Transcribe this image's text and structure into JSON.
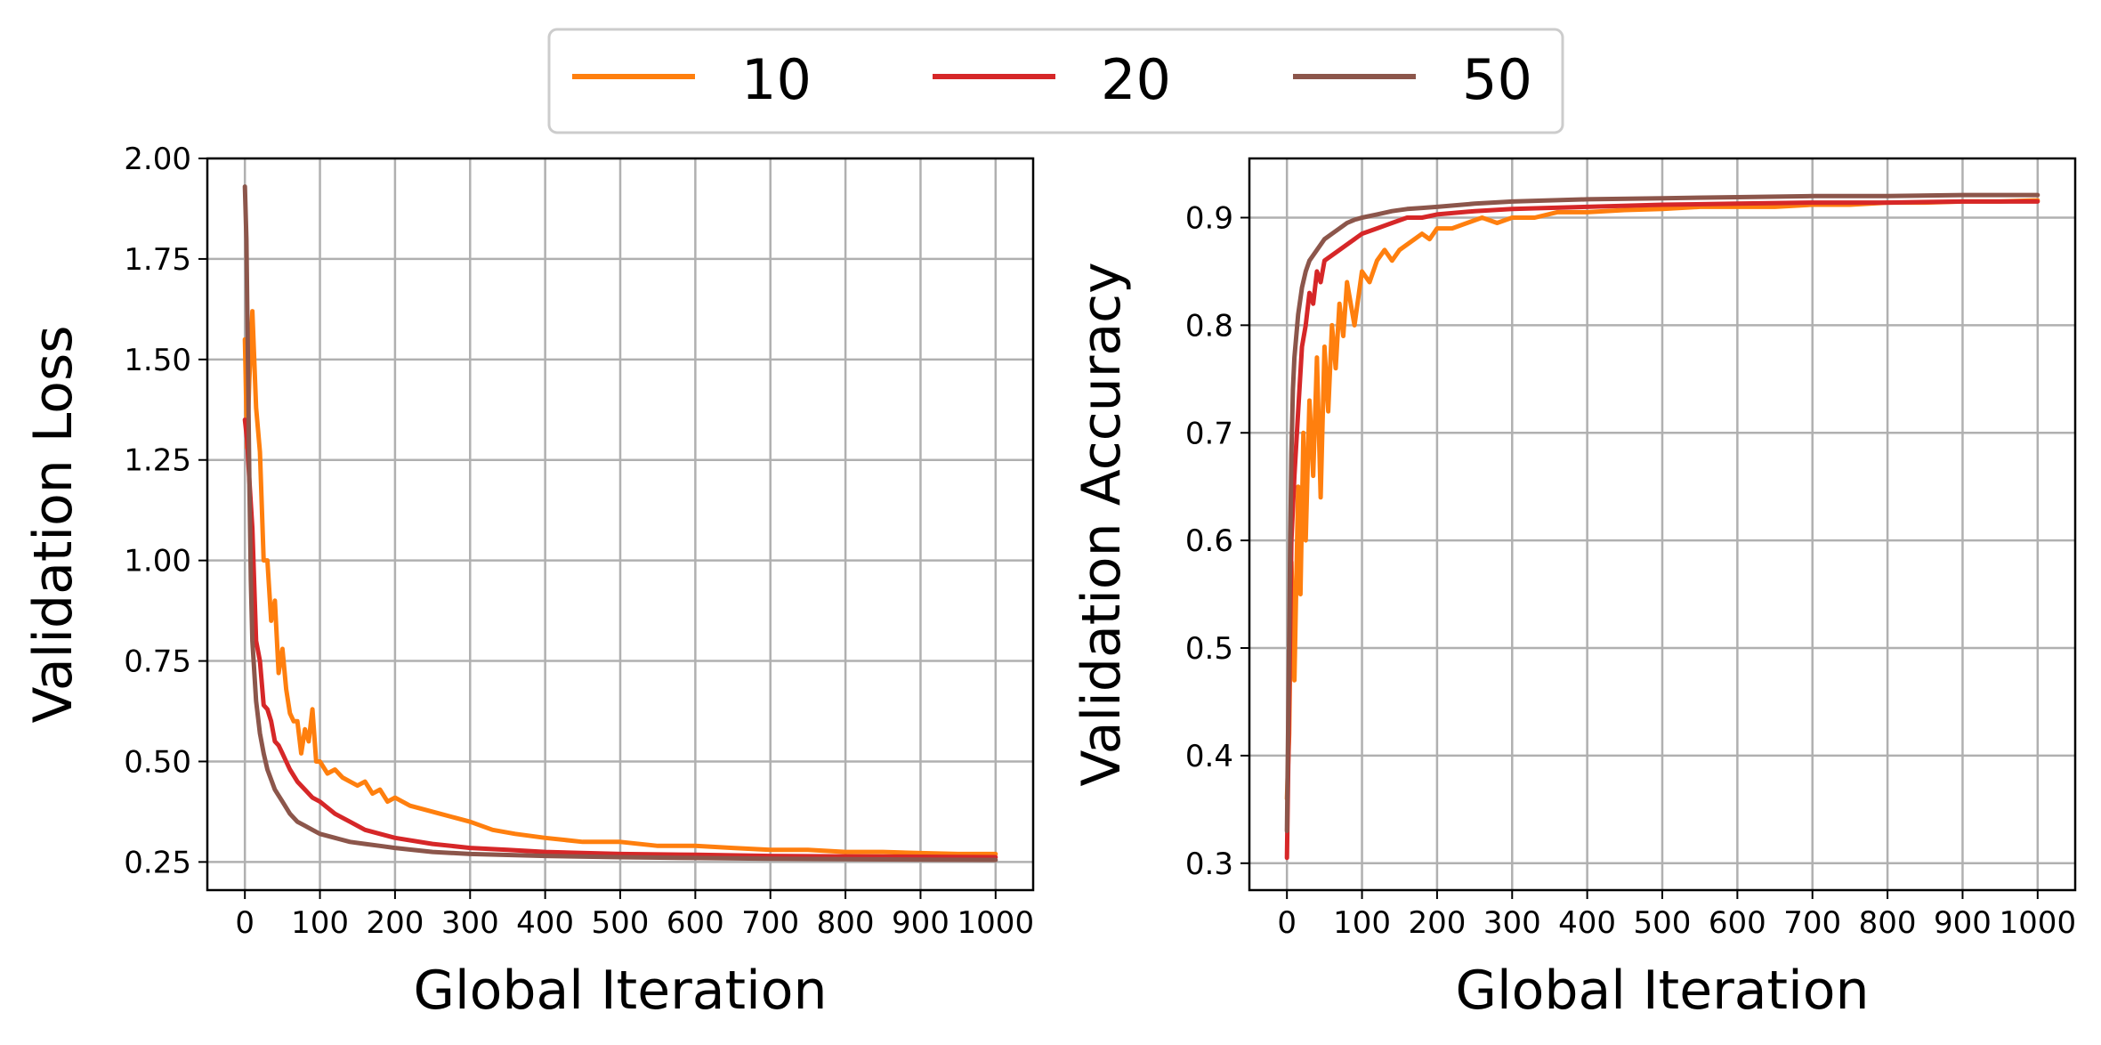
{
  "legend": {
    "placement": "top-center",
    "entries": [
      {
        "label": "10",
        "color": "#ff7f0e"
      },
      {
        "label": "20",
        "color": "#d62728"
      },
      {
        "label": "50",
        "color": "#8c564b"
      }
    ]
  },
  "chart_data": [
    {
      "type": "line",
      "xlabel": "Global Iteration",
      "ylabel": "Validation Loss",
      "xlim": [
        -50,
        1050
      ],
      "ylim": [
        0.18,
        2.0
      ],
      "xticks": [
        0,
        100,
        200,
        300,
        400,
        500,
        600,
        700,
        800,
        900,
        1000
      ],
      "yticks": [
        0.25,
        0.5,
        0.75,
        1.0,
        1.25,
        1.5,
        1.75,
        2.0
      ],
      "ytick_labels": [
        "0.25",
        "0.50",
        "0.75",
        "1.00",
        "1.25",
        "1.50",
        "1.75",
        "2.00"
      ],
      "grid": true,
      "series": [
        {
          "name": "10",
          "color": "#ff7f0e",
          "x": [
            0,
            3,
            6,
            10,
            15,
            20,
            25,
            30,
            35,
            40,
            45,
            50,
            55,
            60,
            65,
            70,
            75,
            80,
            85,
            90,
            95,
            100,
            110,
            120,
            130,
            140,
            150,
            160,
            170,
            180,
            190,
            200,
            220,
            240,
            260,
            280,
            300,
            330,
            360,
            400,
            450,
            500,
            550,
            600,
            650,
            700,
            750,
            800,
            850,
            900,
            950,
            1000
          ],
          "y": [
            1.55,
            1.28,
            1.45,
            1.62,
            1.38,
            1.27,
            1.0,
            1.0,
            0.85,
            0.9,
            0.72,
            0.78,
            0.68,
            0.62,
            0.6,
            0.6,
            0.52,
            0.58,
            0.55,
            0.63,
            0.5,
            0.5,
            0.47,
            0.48,
            0.46,
            0.45,
            0.44,
            0.45,
            0.42,
            0.43,
            0.4,
            0.41,
            0.39,
            0.38,
            0.37,
            0.36,
            0.35,
            0.33,
            0.32,
            0.31,
            0.3,
            0.3,
            0.29,
            0.29,
            0.285,
            0.28,
            0.28,
            0.275,
            0.275,
            0.272,
            0.27,
            0.27
          ]
        },
        {
          "name": "20",
          "color": "#d62728",
          "x": [
            0,
            3,
            6,
            10,
            15,
            20,
            25,
            30,
            35,
            40,
            45,
            50,
            55,
            60,
            70,
            80,
            90,
            100,
            120,
            140,
            160,
            180,
            200,
            250,
            300,
            350,
            400,
            500,
            600,
            700,
            800,
            900,
            1000
          ],
          "y": [
            1.35,
            1.3,
            1.2,
            1.08,
            0.8,
            0.75,
            0.64,
            0.63,
            0.6,
            0.55,
            0.54,
            0.52,
            0.5,
            0.48,
            0.45,
            0.43,
            0.41,
            0.4,
            0.37,
            0.35,
            0.33,
            0.32,
            0.31,
            0.295,
            0.285,
            0.28,
            0.275,
            0.27,
            0.268,
            0.265,
            0.264,
            0.263,
            0.262
          ]
        },
        {
          "name": "50",
          "color": "#8c564b",
          "x": [
            0,
            2,
            4,
            6,
            8,
            10,
            15,
            20,
            25,
            30,
            40,
            50,
            60,
            70,
            80,
            90,
            100,
            120,
            140,
            160,
            180,
            200,
            250,
            300,
            400,
            500,
            600,
            700,
            800,
            900,
            1000
          ],
          "y": [
            1.93,
            1.8,
            1.5,
            1.2,
            0.95,
            0.8,
            0.65,
            0.57,
            0.52,
            0.48,
            0.43,
            0.4,
            0.37,
            0.35,
            0.34,
            0.33,
            0.32,
            0.31,
            0.3,
            0.295,
            0.29,
            0.285,
            0.275,
            0.27,
            0.265,
            0.262,
            0.26,
            0.258,
            0.257,
            0.256,
            0.255
          ]
        }
      ]
    },
    {
      "type": "line",
      "xlabel": "Global Iteration",
      "ylabel": "Validation Accuracy",
      "xlim": [
        -50,
        1050
      ],
      "ylim": [
        0.275,
        0.955
      ],
      "xticks": [
        0,
        100,
        200,
        300,
        400,
        500,
        600,
        700,
        800,
        900,
        1000
      ],
      "yticks": [
        0.3,
        0.4,
        0.5,
        0.6,
        0.7,
        0.8,
        0.9
      ],
      "ytick_labels": [
        "0.3",
        "0.4",
        "0.5",
        "0.6",
        "0.7",
        "0.8",
        "0.9"
      ],
      "grid": true,
      "series": [
        {
          "name": "10",
          "color": "#ff7f0e",
          "x": [
            0,
            3,
            6,
            10,
            15,
            18,
            22,
            25,
            30,
            35,
            40,
            45,
            50,
            55,
            60,
            65,
            70,
            75,
            80,
            90,
            100,
            110,
            120,
            130,
            140,
            150,
            160,
            170,
            180,
            190,
            200,
            220,
            240,
            260,
            280,
            300,
            330,
            360,
            400,
            450,
            500,
            550,
            600,
            650,
            700,
            750,
            800,
            850,
            900,
            950,
            1000
          ],
          "y": [
            0.36,
            0.42,
            0.58,
            0.47,
            0.65,
            0.55,
            0.7,
            0.6,
            0.73,
            0.66,
            0.77,
            0.64,
            0.78,
            0.72,
            0.8,
            0.76,
            0.82,
            0.79,
            0.84,
            0.8,
            0.85,
            0.84,
            0.86,
            0.87,
            0.86,
            0.87,
            0.875,
            0.88,
            0.885,
            0.88,
            0.89,
            0.89,
            0.895,
            0.9,
            0.895,
            0.9,
            0.9,
            0.905,
            0.905,
            0.907,
            0.908,
            0.91,
            0.91,
            0.91,
            0.912,
            0.912,
            0.914,
            0.914,
            0.915,
            0.915,
            0.916
          ]
        },
        {
          "name": "20",
          "color": "#d62728",
          "x": [
            0,
            3,
            6,
            10,
            15,
            20,
            25,
            30,
            35,
            40,
            45,
            50,
            60,
            70,
            80,
            90,
            100,
            120,
            140,
            160,
            180,
            200,
            250,
            300,
            400,
            500,
            600,
            700,
            800,
            900,
            1000
          ],
          "y": [
            0.305,
            0.45,
            0.6,
            0.66,
            0.72,
            0.78,
            0.8,
            0.83,
            0.82,
            0.85,
            0.84,
            0.86,
            0.865,
            0.87,
            0.875,
            0.88,
            0.885,
            0.89,
            0.895,
            0.9,
            0.9,
            0.903,
            0.906,
            0.908,
            0.91,
            0.912,
            0.913,
            0.914,
            0.914,
            0.915,
            0.915
          ]
        },
        {
          "name": "50",
          "color": "#8c564b",
          "x": [
            0,
            2,
            4,
            6,
            8,
            10,
            15,
            20,
            25,
            30,
            40,
            50,
            60,
            70,
            80,
            90,
            100,
            120,
            140,
            160,
            180,
            200,
            250,
            300,
            400,
            500,
            600,
            700,
            800,
            900,
            1000
          ],
          "y": [
            0.33,
            0.45,
            0.58,
            0.68,
            0.74,
            0.77,
            0.81,
            0.835,
            0.85,
            0.86,
            0.87,
            0.88,
            0.885,
            0.89,
            0.895,
            0.898,
            0.9,
            0.903,
            0.906,
            0.908,
            0.909,
            0.91,
            0.913,
            0.915,
            0.917,
            0.918,
            0.919,
            0.92,
            0.92,
            0.921,
            0.921
          ]
        }
      ]
    }
  ]
}
